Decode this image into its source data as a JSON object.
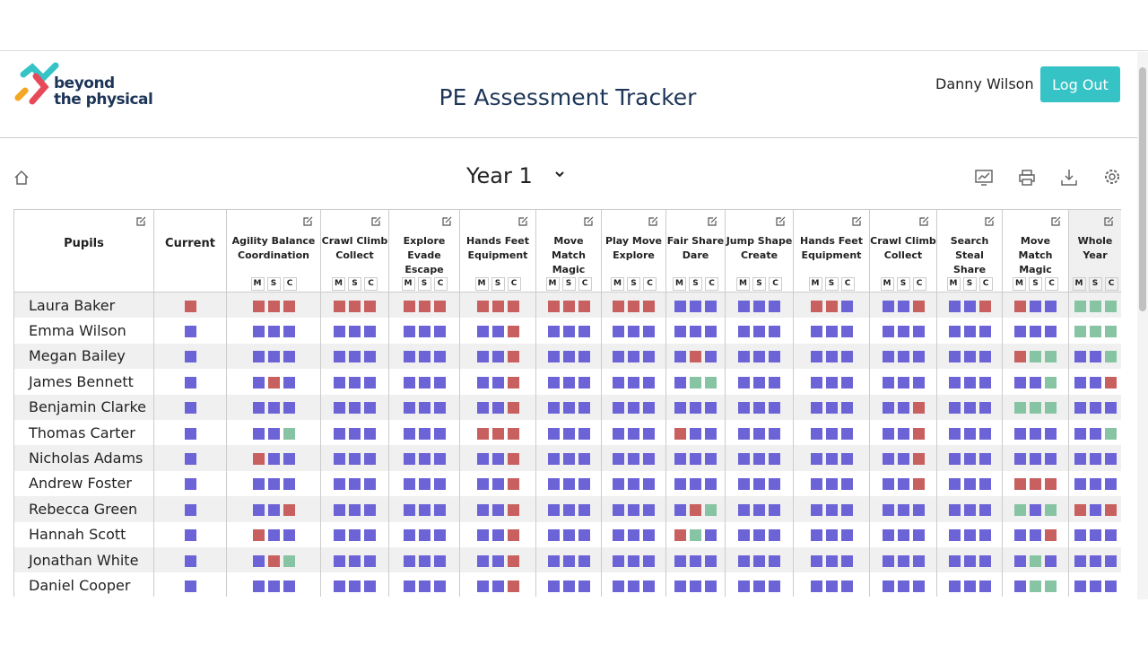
{
  "header": {
    "logo": [
      "beyond",
      "the physical"
    ],
    "title": "PE Assessment Tracker",
    "user": "Danny Wilson",
    "logout": "Log Out"
  },
  "toolbar": {
    "year": "Year 1"
  },
  "table": {
    "pupils_header": "Pupils",
    "current_header": "Current",
    "units": [
      [
        "Agility Balance",
        "Coordination"
      ],
      [
        "Crawl Climb",
        "Collect"
      ],
      [
        "Explore Evade",
        "Escape"
      ],
      [
        "Hands Feet",
        "Equipment"
      ],
      [
        "Move Match",
        "Magic"
      ],
      [
        "Play Move",
        "Explore"
      ],
      [
        "Fair Share",
        "Dare"
      ],
      [
        "Jump Shape",
        "Create"
      ],
      [
        "Hands Feet",
        "Equipment"
      ],
      [
        "Crawl Climb",
        "Collect"
      ],
      [
        "Search Steal",
        "Share"
      ],
      [
        "Move Match",
        "Magic"
      ],
      [
        "Whole",
        "Year"
      ]
    ],
    "sub_labels": [
      "M",
      "S",
      "C"
    ],
    "colors": {
      "b": "#6c63d6",
      "r": "#c8605f",
      "g": "#86c4a4"
    },
    "rows": [
      {
        "name": "Laura Baker",
        "current": "r",
        "cells": [
          "rrr",
          "rrr",
          "rrr",
          "rrr",
          "rrr",
          "rrr",
          "bbb",
          "bbb",
          "rrb",
          "bbr",
          "bbr",
          "rbb",
          "ggg"
        ]
      },
      {
        "name": "Emma Wilson",
        "current": "b",
        "cells": [
          "bbb",
          "bbb",
          "bbb",
          "bbr",
          "bbb",
          "bbb",
          "bbb",
          "bbb",
          "bbb",
          "bbb",
          "bbb",
          "bbb",
          "ggg"
        ]
      },
      {
        "name": "Megan Bailey",
        "current": "b",
        "cells": [
          "bbb",
          "bbb",
          "bbb",
          "bbr",
          "bbb",
          "bbb",
          "brb",
          "bbb",
          "bbb",
          "bbb",
          "bbb",
          "rgg",
          "bbg"
        ]
      },
      {
        "name": "James Bennett",
        "current": "b",
        "cells": [
          "brb",
          "bbb",
          "bbb",
          "bbr",
          "bbb",
          "bbb",
          "bgg",
          "bbb",
          "bbb",
          "bbb",
          "bbb",
          "bbg",
          "bbr"
        ]
      },
      {
        "name": "Benjamin Clarke",
        "current": "b",
        "cells": [
          "bbb",
          "bbb",
          "bbb",
          "bbr",
          "bbb",
          "bbb",
          "bbb",
          "bbb",
          "bbb",
          "bbr",
          "bbb",
          "ggg",
          "bbb"
        ]
      },
      {
        "name": "Thomas Carter",
        "current": "b",
        "cells": [
          "bbg",
          "bbb",
          "bbb",
          "rrr",
          "bbb",
          "bbb",
          "rbb",
          "bbb",
          "bbb",
          "bbr",
          "bbb",
          "bbb",
          "bbg"
        ]
      },
      {
        "name": "Nicholas Adams",
        "current": "b",
        "cells": [
          "rbb",
          "bbb",
          "bbb",
          "bbr",
          "bbb",
          "bbb",
          "bbb",
          "bbb",
          "bbb",
          "bbr",
          "bbb",
          "bbb",
          "bbb"
        ]
      },
      {
        "name": "Andrew Foster",
        "current": "b",
        "cells": [
          "bbb",
          "bbb",
          "bbb",
          "bbr",
          "bbb",
          "bbb",
          "bbb",
          "bbb",
          "bbb",
          "bbr",
          "bbb",
          "rrr",
          "bbb"
        ]
      },
      {
        "name": "Rebecca Green",
        "current": "b",
        "cells": [
          "bbr",
          "bbb",
          "bbb",
          "bbr",
          "bbb",
          "bbb",
          "brg",
          "bbb",
          "bbb",
          "bbb",
          "bbb",
          "gbg",
          "rbr"
        ]
      },
      {
        "name": "Hannah Scott",
        "current": "b",
        "cells": [
          "rbb",
          "bbb",
          "bbb",
          "bbr",
          "bbb",
          "bbb",
          "rgb",
          "bbb",
          "bbb",
          "bbb",
          "bbb",
          "bbr",
          "bbb"
        ]
      },
      {
        "name": "Jonathan White",
        "current": "b",
        "cells": [
          "brg",
          "bbb",
          "bbb",
          "bbr",
          "bbb",
          "bbb",
          "bbb",
          "bbb",
          "bbb",
          "bbb",
          "bbb",
          "bgb",
          "bbb"
        ]
      },
      {
        "name": "Daniel Cooper",
        "current": "b",
        "cells": [
          "bbb",
          "bbb",
          "bbb",
          "bbr",
          "bbb",
          "bbb",
          "bbb",
          "bbb",
          "bbb",
          "bbb",
          "bbb",
          "bgg",
          "bbb"
        ]
      }
    ]
  }
}
